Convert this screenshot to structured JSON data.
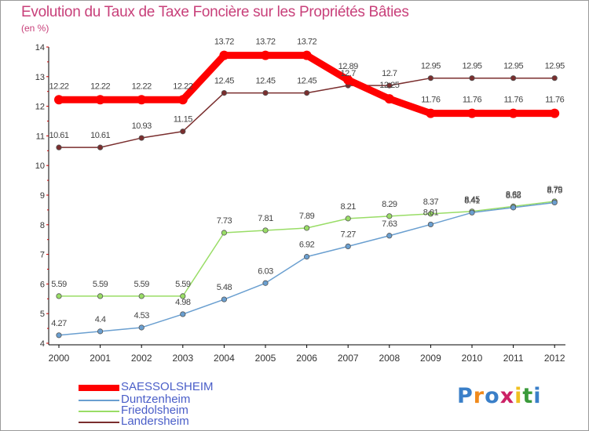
{
  "chart_data": {
    "type": "line",
    "title": "Evolution du Taux de Taxe Foncière sur les Propriétés Bâties",
    "subtitle": "(en %)",
    "x": [
      "2000",
      "2001",
      "2002",
      "2003",
      "2004",
      "2005",
      "2006",
      "2007",
      "2008",
      "2009",
      "2010",
      "2011",
      "2012"
    ],
    "ylim": [
      4,
      14
    ],
    "yticks": [
      "4",
      "5",
      "6",
      "7",
      "8",
      "9",
      "10",
      "11",
      "12",
      "13",
      "14"
    ],
    "grid": false,
    "legend_position": "bottom-left",
    "series": [
      {
        "name": "SAESSOLSHEIM",
        "color": "#ff0000",
        "values": [
          12.22,
          12.22,
          12.22,
          12.22,
          13.72,
          13.72,
          13.72,
          12.89,
          12.25,
          11.76,
          11.76,
          11.76,
          11.76
        ],
        "labels": [
          "12.22",
          "12.22",
          "12.22",
          "12.22",
          "13.72",
          "13.72",
          "13.72",
          "12.89",
          "12.25",
          "11.76",
          "11.76",
          "11.76",
          "11.76"
        ]
      },
      {
        "name": "Duntzenheim",
        "color": "#6a9fd0",
        "values": [
          4.27,
          4.4,
          4.53,
          4.98,
          5.48,
          6.03,
          6.92,
          7.27,
          7.63,
          8.01,
          8.41,
          8.58,
          8.75
        ],
        "labels": [
          "4.27",
          "4.4",
          "4.53",
          "4.98",
          "5.48",
          "6.03",
          "6.92",
          "7.27",
          "7.63",
          "8.01",
          "8.41",
          "8.58",
          "8.75"
        ]
      },
      {
        "name": "Friedolsheim",
        "color": "#99dd66",
        "values": [
          5.59,
          5.59,
          5.59,
          5.59,
          7.73,
          7.81,
          7.89,
          8.21,
          8.29,
          8.37,
          8.45,
          8.62,
          8.79
        ],
        "labels": [
          "5.59",
          "5.59",
          "5.59",
          "5.59",
          "7.73",
          "7.81",
          "7.89",
          "8.21",
          "8.29",
          "8.37",
          "8.45",
          "8.62",
          "8.79"
        ]
      },
      {
        "name": "Landersheim",
        "color": "#7a2e2e",
        "values": [
          10.61,
          10.61,
          10.93,
          11.15,
          12.45,
          12.45,
          12.45,
          12.7,
          12.7,
          12.95,
          12.95,
          12.95,
          12.95
        ],
        "labels": [
          "10.61",
          "10.61",
          "10.93",
          "11.15",
          "12.45",
          "12.45",
          "12.45",
          "12.7",
          "12.7",
          "12.95",
          "12.95",
          "12.95",
          "12.95"
        ]
      }
    ]
  },
  "logo": {
    "text": "Proxiti",
    "colors": [
      "#3a7fc8",
      "#f08a1c",
      "#3a7fc8",
      "#cc2266",
      "#f0c020",
      "#3a9a3a",
      "#3a7fc8"
    ]
  }
}
